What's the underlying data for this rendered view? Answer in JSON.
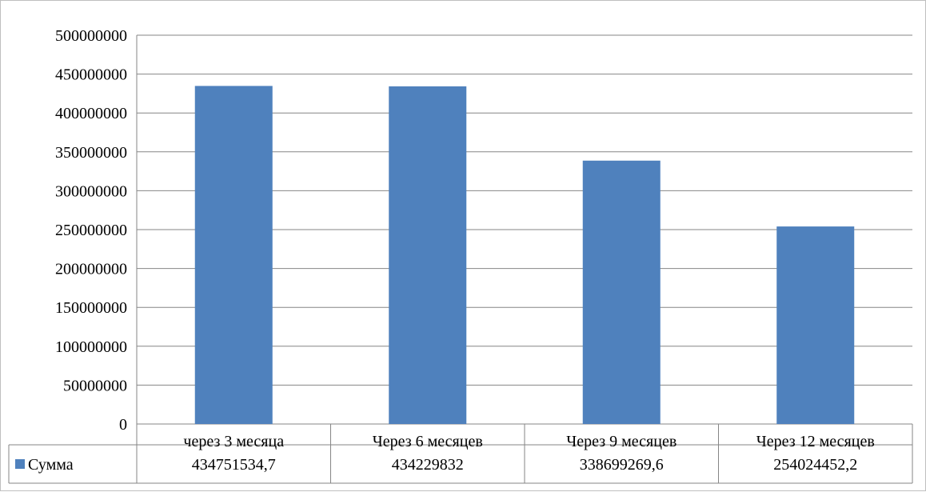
{
  "chart_data": {
    "type": "bar",
    "title": "",
    "xlabel": "",
    "ylabel": "",
    "categories": [
      "через 3 месяца",
      "Через 6 месяцев",
      "Через 9 месяцев",
      "Через 12 месяцев"
    ],
    "series": [
      {
        "name": "Сумма",
        "values": [
          434751534.7,
          434229832,
          338699269.6,
          254024452.2
        ],
        "value_labels": [
          "434751534,7",
          "434229832",
          "338699269,6",
          "254024452,2"
        ],
        "color": "#4f81bd"
      }
    ],
    "ylim": [
      0,
      500000000
    ],
    "yticks": [
      0,
      50000000,
      100000000,
      150000000,
      200000000,
      250000000,
      300000000,
      350000000,
      400000000,
      450000000,
      500000000
    ],
    "ytick_labels": [
      "0",
      "50000000",
      "100000000",
      "150000000",
      "200000000",
      "250000000",
      "300000000",
      "350000000",
      "400000000",
      "450000000",
      "500000000"
    ],
    "grid": true,
    "legend": "data-table",
    "colors": {
      "gridline": "#868686",
      "border": "#bfbfbf"
    }
  }
}
